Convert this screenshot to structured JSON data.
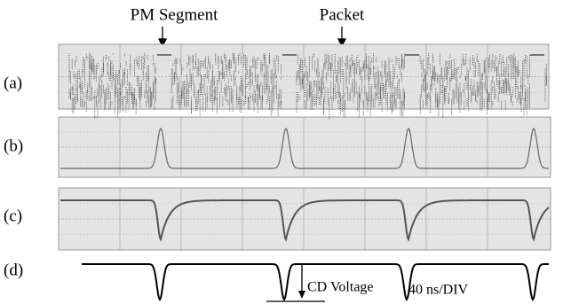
{
  "annotations": {
    "pm_segment": "PM Segment",
    "packet": "Packet",
    "cd_voltage": "CD Voltage",
    "time_scale": "40 ns/DIV"
  },
  "panels": [
    {
      "label": "(a)"
    },
    {
      "label": "(b)"
    },
    {
      "label": "(c)"
    },
    {
      "label": "(d)"
    }
  ]
}
